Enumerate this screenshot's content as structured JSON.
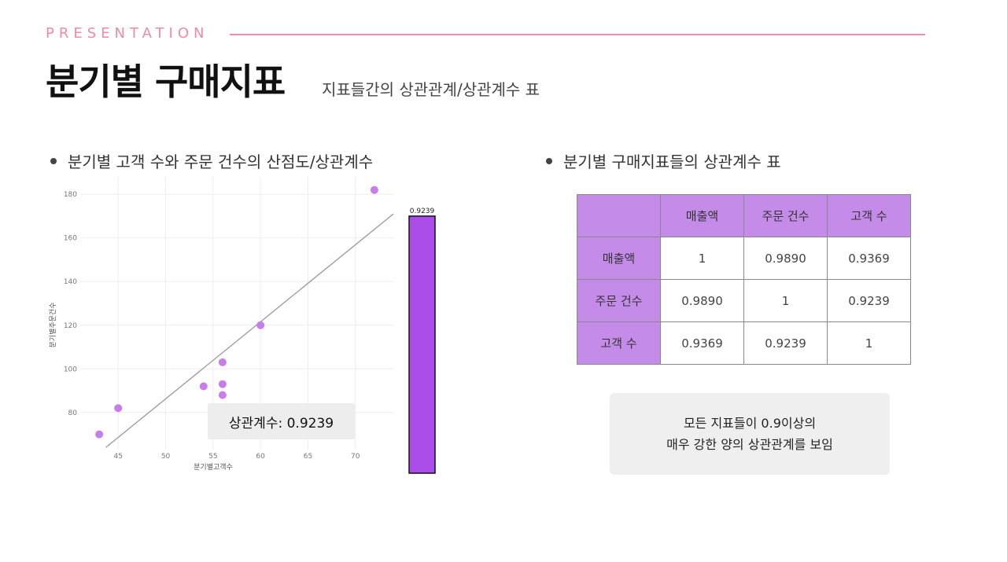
{
  "header": {
    "eyebrow": "PRESENTATION",
    "title": "분기별 구매지표",
    "subtitle": "지표들간의 상관관계/상관계수 표"
  },
  "left": {
    "heading": "분기별 고객 수와 주문 건수의 산점도/상관계수",
    "corr_label": "상관계수: 0.9239"
  },
  "right": {
    "heading": "분기별 구매지표들의 상관계수 표",
    "table": {
      "columns": [
        "",
        "매출액",
        "주문 건수",
        "고객 수"
      ],
      "rows": [
        [
          "매출액",
          "1",
          "0.9890",
          "0.9369"
        ],
        [
          "주문 건수",
          "0.9890",
          "1",
          "0.9239"
        ],
        [
          "고객 수",
          "0.9369",
          "0.9239",
          "1"
        ]
      ]
    },
    "note_line1": "모든 지표들이 0.9이상의",
    "note_line2": "매우 강한 양의 상관관계를 보임"
  },
  "colors": {
    "accent_pink": "#ee8fac",
    "point_purple": "#c77dea",
    "bar_purple": "#a94ce8",
    "table_header": "#c48be8"
  },
  "chart_data": [
    {
      "type": "scatter",
      "title": "",
      "xlabel": "분기별고객수",
      "ylabel": "분기별주문건수",
      "xlim": [
        41,
        74
      ],
      "ylim": [
        63,
        188
      ],
      "xticks": [
        45,
        50,
        55,
        60,
        65,
        70
      ],
      "yticks": [
        80,
        100,
        120,
        140,
        160,
        180
      ],
      "grid": true,
      "points": [
        {
          "x": 43,
          "y": 70
        },
        {
          "x": 45,
          "y": 82
        },
        {
          "x": 54,
          "y": 92
        },
        {
          "x": 56,
          "y": 88
        },
        {
          "x": 56,
          "y": 93
        },
        {
          "x": 56,
          "y": 103
        },
        {
          "x": 60,
          "y": 120
        },
        {
          "x": 72,
          "y": 182
        }
      ],
      "trendline": {
        "x": [
          43.7,
          74
        ],
        "y": [
          64,
          171
        ]
      }
    },
    {
      "type": "bar",
      "categories": [
        ""
      ],
      "values": [
        0.9239
      ],
      "ylim": [
        0,
        1
      ],
      "data_labels": [
        "0.9239"
      ]
    }
  ]
}
